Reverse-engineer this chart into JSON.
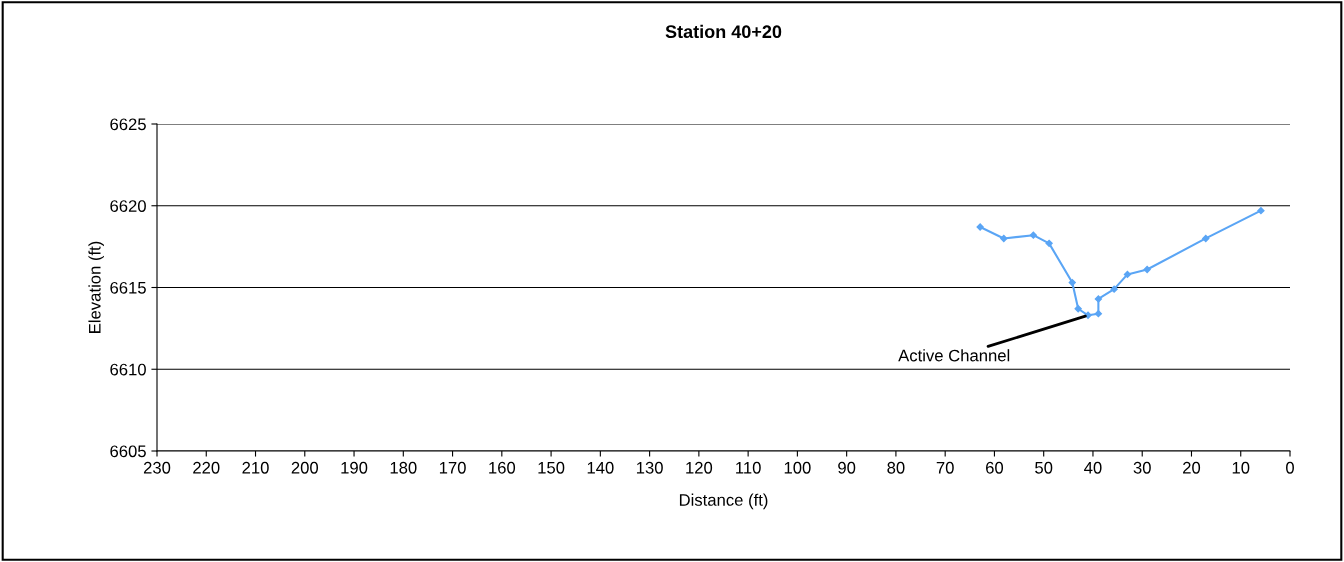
{
  "chart_data": {
    "type": "line",
    "title": "Station 40+20",
    "xlabel": "Distance (ft)",
    "ylabel": "Elevation (ft)",
    "x": [
      62.9,
      58.1,
      52.1,
      48.9,
      44.2,
      43.0,
      41.0,
      38.9,
      38.9,
      35.7,
      33.0,
      29.0,
      17.1,
      5.9
    ],
    "series": [
      {
        "color": "#5aa5f5",
        "values": [
          6618.7,
          6618.0,
          6618.2,
          6617.7,
          6615.3,
          6613.7,
          6613.3,
          6613.4,
          6614.3,
          6614.9,
          6615.8,
          6616.1,
          6618.0,
          6619.7
        ]
      }
    ],
    "xlim": [
      230,
      0
    ],
    "xticks": [
      230,
      220,
      210,
      200,
      190,
      180,
      170,
      160,
      150,
      140,
      130,
      120,
      110,
      100,
      90,
      80,
      70,
      60,
      50,
      40,
      30,
      20,
      10,
      0
    ],
    "ylim": [
      6605,
      6625
    ],
    "yticks": [
      6605,
      6610,
      6615,
      6620,
      6625
    ],
    "grid": "y",
    "marker": "diamond",
    "line_style": "solid",
    "legend": false,
    "annotations": [
      {
        "text": "Active Channel",
        "x": 41.0,
        "y": 6613.3
      }
    ]
  }
}
